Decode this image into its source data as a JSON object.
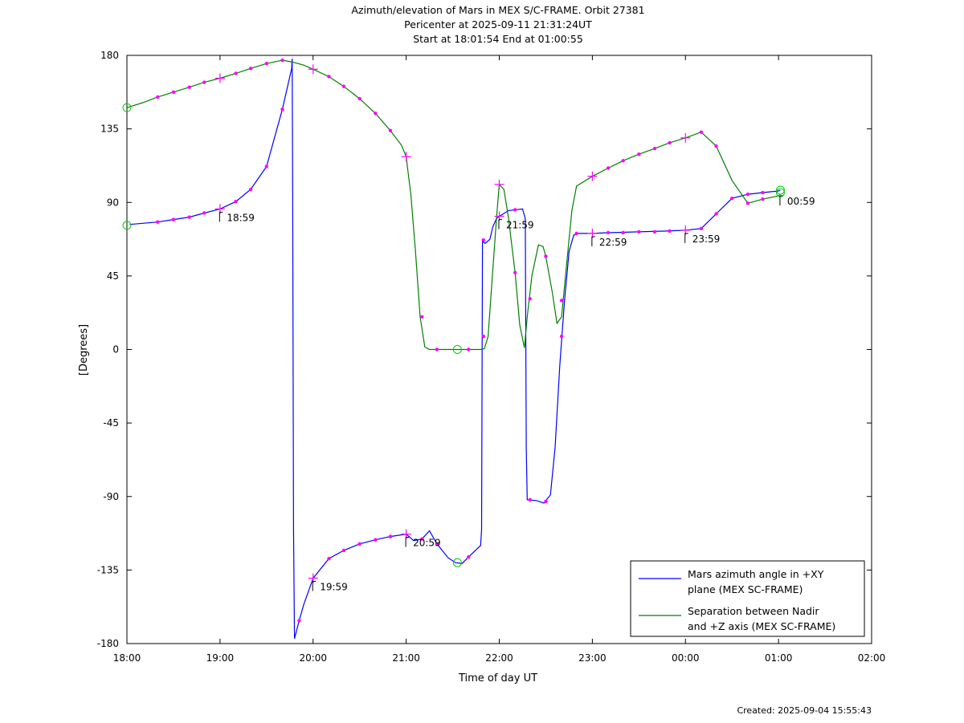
{
  "chart_data": {
    "type": "line",
    "title_lines": [
      "Azimuth/elevation of Mars in MEX S/C-FRAME.  Orbit 27381",
      "Pericenter at 2025-09-11 21:31:24UT",
      "Start at 18:01:54 End at 01:00:55"
    ],
    "xlabel": "Time of day UT",
    "ylabel": "[Degrees]",
    "xlim_hours": [
      18,
      26
    ],
    "ylim": [
      -180,
      180
    ],
    "x_ticks": [
      {
        "v": 18,
        "label": "18:00"
      },
      {
        "v": 19,
        "label": "19:00"
      },
      {
        "v": 20,
        "label": "20:00"
      },
      {
        "v": 21,
        "label": "21:00"
      },
      {
        "v": 22,
        "label": "22:00"
      },
      {
        "v": 23,
        "label": "23:00"
      },
      {
        "v": 24,
        "label": "00:00"
      },
      {
        "v": 25,
        "label": "01:00"
      },
      {
        "v": 26,
        "label": "02:00"
      }
    ],
    "y_ticks": [
      {
        "v": 180,
        "label": "180"
      },
      {
        "v": 135,
        "label": "135"
      },
      {
        "v": 90,
        "label": "90"
      },
      {
        "v": 45,
        "label": "45"
      },
      {
        "v": 0,
        "label": "0"
      },
      {
        "v": -45,
        "label": "-45"
      },
      {
        "v": -90,
        "label": "-90"
      },
      {
        "v": -135,
        "label": "-135"
      },
      {
        "v": -180,
        "label": "-180"
      }
    ],
    "series": [
      {
        "name": "Mars azimuth angle in +XY plane (MEX SC-FRAME)",
        "legend_lines": [
          "Mars azimuth angle in +XY",
          "plane (MEX SC-FRAME)"
        ],
        "color": "#0000ff",
        "points": [
          [
            18.03,
            76.5
          ],
          [
            18.33,
            78
          ],
          [
            18.5,
            79.5
          ],
          [
            18.67,
            81
          ],
          [
            18.83,
            83.5
          ],
          [
            19.0,
            86
          ],
          [
            19.17,
            90.5
          ],
          [
            19.33,
            98
          ],
          [
            19.5,
            112
          ],
          [
            19.67,
            147
          ],
          [
            19.77,
            172
          ],
          [
            19.775,
            178
          ],
          [
            19.78,
            100
          ],
          [
            19.79,
            -110
          ],
          [
            19.8,
            -177
          ],
          [
            19.85,
            -166
          ],
          [
            19.9,
            -156
          ],
          [
            20.0,
            -140
          ],
          [
            20.17,
            -128
          ],
          [
            20.33,
            -123
          ],
          [
            20.5,
            -119
          ],
          [
            20.67,
            -116.5
          ],
          [
            20.83,
            -114.5
          ],
          [
            21.0,
            -113
          ],
          [
            21.08,
            -117
          ],
          [
            21.17,
            -116
          ],
          [
            21.25,
            -111
          ],
          [
            21.33,
            -119
          ],
          [
            21.45,
            -127.5
          ],
          [
            21.53,
            -130.5
          ],
          [
            21.6,
            -131
          ],
          [
            21.67,
            -127
          ],
          [
            21.8,
            -120
          ],
          [
            21.81,
            -110
          ],
          [
            21.82,
            66
          ],
          [
            21.85,
            65
          ],
          [
            21.9,
            67.5
          ],
          [
            21.93,
            75
          ],
          [
            21.97,
            80
          ],
          [
            22.0,
            81.5
          ],
          [
            22.1,
            85
          ],
          [
            22.25,
            86
          ],
          [
            22.28,
            80
          ],
          [
            22.29,
            -60
          ],
          [
            22.3,
            -92
          ],
          [
            22.4,
            -92.5
          ],
          [
            22.48,
            -94
          ],
          [
            22.55,
            -89
          ],
          [
            22.6,
            -60
          ],
          [
            22.65,
            -10
          ],
          [
            22.7,
            29
          ],
          [
            22.75,
            60
          ],
          [
            22.8,
            70
          ],
          [
            22.85,
            71
          ],
          [
            23.0,
            71
          ],
          [
            23.2,
            71.5
          ],
          [
            23.5,
            72
          ],
          [
            23.8,
            72.5
          ],
          [
            24.0,
            73
          ],
          [
            24.17,
            74
          ],
          [
            24.33,
            83
          ],
          [
            24.5,
            92.5
          ],
          [
            24.67,
            95
          ],
          [
            24.83,
            96
          ],
          [
            25.0,
            97
          ],
          [
            25.02,
            97.5
          ]
        ],
        "markers_dot": [
          [
            18.33,
            78
          ],
          [
            18.5,
            79.5
          ],
          [
            18.67,
            81
          ],
          [
            18.83,
            83.5
          ],
          [
            19.17,
            90.5
          ],
          [
            19.33,
            98
          ],
          [
            19.5,
            112
          ],
          [
            19.67,
            147
          ],
          [
            19.85,
            -166
          ],
          [
            20.17,
            -128
          ],
          [
            20.33,
            -123
          ],
          [
            20.5,
            -119
          ],
          [
            20.67,
            -116.5
          ],
          [
            20.83,
            -114.5
          ],
          [
            21.17,
            -116
          ],
          [
            21.33,
            -119
          ],
          [
            21.67,
            -127
          ],
          [
            21.83,
            67
          ],
          [
            22.17,
            85.5
          ],
          [
            22.33,
            -92
          ],
          [
            22.5,
            -93
          ],
          [
            22.67,
            8
          ],
          [
            22.83,
            71
          ],
          [
            23.17,
            71.5
          ],
          [
            23.33,
            71.5
          ],
          [
            23.5,
            72
          ],
          [
            23.67,
            72
          ],
          [
            23.83,
            72.5
          ],
          [
            24.17,
            74
          ],
          [
            24.33,
            83
          ],
          [
            24.5,
            92.5
          ],
          [
            24.67,
            95
          ],
          [
            24.83,
            96
          ]
        ],
        "markers_cross": [
          [
            19.0,
            86
          ],
          [
            20.0,
            -140
          ],
          [
            21.0,
            -113
          ],
          [
            22.0,
            81.5
          ],
          [
            23.0,
            71
          ],
          [
            24.0,
            73
          ]
        ],
        "markers_circle": [
          [
            18.0,
            76
          ],
          [
            21.55,
            -130.5
          ],
          [
            25.02,
            97.5
          ]
        ]
      },
      {
        "name": "Separation between Nadir and +Z axis (MEX SC-FRAME)",
        "legend_lines": [
          "Separation between Nadir",
          "and +Z axis (MEX SC-FRAME)"
        ],
        "color": "#008000",
        "points": [
          [
            18.0,
            148
          ],
          [
            18.17,
            151
          ],
          [
            18.33,
            154.5
          ],
          [
            18.5,
            157.5
          ],
          [
            18.67,
            160.5
          ],
          [
            18.83,
            163.5
          ],
          [
            19.0,
            166
          ],
          [
            19.17,
            169
          ],
          [
            19.33,
            172
          ],
          [
            19.5,
            175
          ],
          [
            19.67,
            177
          ],
          [
            19.77,
            176
          ],
          [
            19.9,
            174
          ],
          [
            20.0,
            171.5
          ],
          [
            20.17,
            167
          ],
          [
            20.33,
            161
          ],
          [
            20.5,
            153.5
          ],
          [
            20.67,
            144.5
          ],
          [
            20.83,
            134
          ],
          [
            20.95,
            125
          ],
          [
            21.0,
            118
          ],
          [
            21.05,
            95
          ],
          [
            21.1,
            60
          ],
          [
            21.15,
            20
          ],
          [
            21.2,
            1.5
          ],
          [
            21.25,
            0
          ],
          [
            21.5,
            0
          ],
          [
            21.8,
            0
          ],
          [
            21.84,
            0.5
          ],
          [
            21.88,
            8
          ],
          [
            21.92,
            40
          ],
          [
            21.97,
            80
          ],
          [
            22.0,
            101
          ],
          [
            22.05,
            98
          ],
          [
            22.1,
            80
          ],
          [
            22.17,
            47
          ],
          [
            22.22,
            15
          ],
          [
            22.27,
            1
          ],
          [
            22.3,
            20
          ],
          [
            22.35,
            45
          ],
          [
            22.42,
            64
          ],
          [
            22.47,
            63
          ],
          [
            22.5,
            57
          ],
          [
            22.57,
            35
          ],
          [
            22.62,
            16
          ],
          [
            22.67,
            20
          ],
          [
            22.72,
            50
          ],
          [
            22.78,
            85
          ],
          [
            22.83,
            100
          ],
          [
            23.0,
            106
          ],
          [
            23.17,
            111
          ],
          [
            23.33,
            115.5
          ],
          [
            23.5,
            119.5
          ],
          [
            23.67,
            123
          ],
          [
            23.83,
            126.5
          ],
          [
            24.0,
            129.5
          ],
          [
            24.17,
            133
          ],
          [
            24.33,
            124.5
          ],
          [
            24.5,
            103.5
          ],
          [
            24.67,
            89.5
          ],
          [
            24.83,
            92
          ],
          [
            25.0,
            94
          ],
          [
            25.02,
            95
          ]
        ],
        "markers_dot": [
          [
            18.33,
            154.5
          ],
          [
            18.5,
            157.5
          ],
          [
            18.67,
            160.5
          ],
          [
            18.83,
            163.5
          ],
          [
            19.17,
            169
          ],
          [
            19.33,
            172
          ],
          [
            19.5,
            175
          ],
          [
            19.67,
            177
          ],
          [
            20.17,
            167
          ],
          [
            20.33,
            161
          ],
          [
            20.5,
            153.5
          ],
          [
            20.67,
            144.5
          ],
          [
            20.83,
            134
          ],
          [
            21.17,
            20
          ],
          [
            21.33,
            0
          ],
          [
            21.67,
            0
          ],
          [
            21.83,
            8
          ],
          [
            22.17,
            47
          ],
          [
            22.33,
            31
          ],
          [
            22.5,
            57
          ],
          [
            22.67,
            30
          ],
          [
            23.17,
            111
          ],
          [
            23.33,
            115.5
          ],
          [
            23.5,
            119.5
          ],
          [
            23.67,
            123
          ],
          [
            23.83,
            126.5
          ],
          [
            24.17,
            133
          ],
          [
            24.33,
            124.5
          ],
          [
            24.67,
            89.5
          ],
          [
            24.83,
            92
          ]
        ],
        "markers_cross": [
          [
            19.0,
            166
          ],
          [
            20.0,
            171.5
          ],
          [
            21.0,
            118
          ],
          [
            22.0,
            101
          ],
          [
            23.0,
            106
          ],
          [
            24.0,
            129.5
          ]
        ],
        "markers_circle": [
          [
            18.0,
            148
          ],
          [
            21.55,
            0
          ],
          [
            25.02,
            96
          ]
        ]
      }
    ],
    "time_annotations": [
      {
        "x": 19.03,
        "y": 86,
        "label": "18:59"
      },
      {
        "x": 20.03,
        "y": -140,
        "label": "19:59"
      },
      {
        "x": 21.03,
        "y": -113,
        "label": "20:59"
      },
      {
        "x": 22.03,
        "y": 81.5,
        "label": "21:59"
      },
      {
        "x": 23.03,
        "y": 71,
        "label": "22:59"
      },
      {
        "x": 24.03,
        "y": 73,
        "label": "23:59"
      },
      {
        "x": 25.05,
        "y": 96,
        "label": "00:59"
      }
    ],
    "legend_position": "bottom-right",
    "marker_color": "#ff00ff",
    "created": "Created: 2025-09-04 15:55:43"
  }
}
